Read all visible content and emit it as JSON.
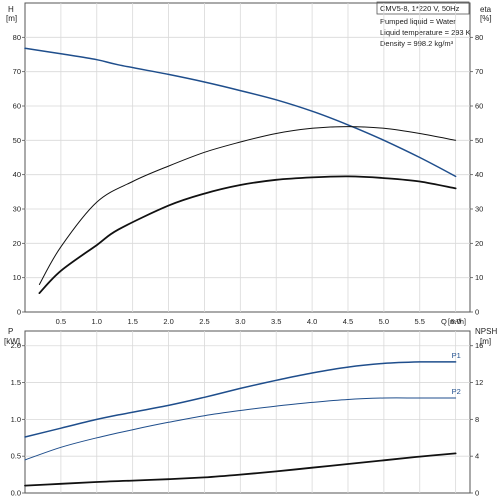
{
  "info": {
    "title": "CMV5-8, 1*220 V, 50Hz",
    "lines": [
      "Pumped liquid = Water",
      "Liquid temperature = 293 K",
      "Density = 998.2 kg/m³"
    ]
  },
  "colors": {
    "head": "#1f4e8c",
    "eta": "#111111",
    "p1": "#1f4e8c",
    "p2": "#1f4e8c",
    "npsh": "#111111",
    "grid": "#d9d9d9",
    "axis": "#555555"
  },
  "chart_data": [
    {
      "type": "line",
      "grid": true,
      "xlabel": "Q",
      "xunit": "[m³/h]",
      "xlim": [
        0,
        6.2
      ],
      "xticks": [
        "0.5",
        "1.0",
        "1.5",
        "2.0",
        "2.5",
        "3.0",
        "3.5",
        "4.0",
        "4.5",
        "5.0",
        "5.5",
        "6.0"
      ],
      "ylabel_left": "H",
      "yunit_left": "[m]",
      "ylim_left": [
        0,
        90
      ],
      "yticks_left": [
        "0",
        "10",
        "20",
        "30",
        "40",
        "50",
        "60",
        "70",
        "80"
      ],
      "ylabel_right": "eta",
      "yunit_right": "[%]",
      "ylim_right": [
        0,
        90
      ],
      "yticks_right": [
        "0",
        "10",
        "20",
        "30",
        "40",
        "50",
        "60",
        "70",
        "80"
      ],
      "series": [
        {
          "key": "head",
          "axis": "left",
          "x": [
            0,
            0.5,
            1.0,
            1.3,
            2.0,
            2.5,
            3.0,
            3.5,
            4.0,
            4.5,
            5.0,
            5.5,
            6.0
          ],
          "y": [
            76.8,
            75.2,
            73.5,
            72.0,
            69.2,
            67.0,
            64.5,
            61.8,
            58.5,
            54.5,
            50.0,
            45.0,
            39.5
          ]
        },
        {
          "key": "eta",
          "axis": "right",
          "x": [
            0.2,
            0.5,
            1.0,
            1.5,
            2.0,
            2.5,
            3.0,
            3.5,
            4.0,
            4.5,
            5.0,
            5.5,
            6.0
          ],
          "y": [
            8,
            19,
            32,
            38,
            42.5,
            46.5,
            49.5,
            52,
            53.5,
            54,
            53.5,
            52,
            50
          ]
        },
        {
          "key": "npsh_lower",
          "axis": "left",
          "x": [
            0.2,
            0.5,
            1.0,
            1.3,
            2.0,
            2.5,
            3.0,
            3.5,
            4.0,
            4.5,
            5.0,
            5.5,
            6.0
          ],
          "y": [
            5.5,
            12,
            19.5,
            24,
            31,
            34.5,
            37,
            38.5,
            39.2,
            39.5,
            39,
            38,
            36
          ]
        }
      ]
    },
    {
      "type": "line",
      "grid": true,
      "xlim": [
        0,
        6.2
      ],
      "ylabel_left": "P",
      "yunit_left": "[kW]",
      "ylim_left": [
        0,
        2.2
      ],
      "yticks_left": [
        "0.0",
        "0.5",
        "1.0",
        "1.5",
        "2.0"
      ],
      "ylabel_right": "NPSH",
      "yunit_right": "[m]",
      "ylim_right": [
        0,
        17.6
      ],
      "yticks_right": [
        "0",
        "4",
        "8",
        "12",
        "16"
      ],
      "series": [
        {
          "key": "p1",
          "name": "P1",
          "axis": "left",
          "x": [
            0,
            0.5,
            1.0,
            1.3,
            2.0,
            2.5,
            3.0,
            3.5,
            4.0,
            4.5,
            5.0,
            5.5,
            6.0
          ],
          "y": [
            0.76,
            0.88,
            1.0,
            1.06,
            1.19,
            1.3,
            1.42,
            1.53,
            1.63,
            1.71,
            1.76,
            1.78,
            1.78
          ]
        },
        {
          "key": "p2",
          "name": "P2",
          "axis": "left",
          "x": [
            0,
            0.5,
            1.0,
            1.5,
            2.0,
            2.5,
            3.0,
            3.5,
            4.0,
            4.5,
            5.0,
            5.5,
            6.0
          ],
          "y": [
            0.45,
            0.62,
            0.75,
            0.86,
            0.96,
            1.05,
            1.12,
            1.18,
            1.23,
            1.27,
            1.29,
            1.29,
            1.29
          ]
        },
        {
          "key": "npsh",
          "axis": "right",
          "x": [
            0,
            0.5,
            1.0,
            1.5,
            2.0,
            2.5,
            3.0,
            3.5,
            4.0,
            4.5,
            5.0,
            5.5,
            6.0
          ],
          "y": [
            0.8,
            1.0,
            1.2,
            1.35,
            1.5,
            1.7,
            2.0,
            2.35,
            2.75,
            3.15,
            3.55,
            3.95,
            4.3
          ]
        }
      ]
    }
  ]
}
